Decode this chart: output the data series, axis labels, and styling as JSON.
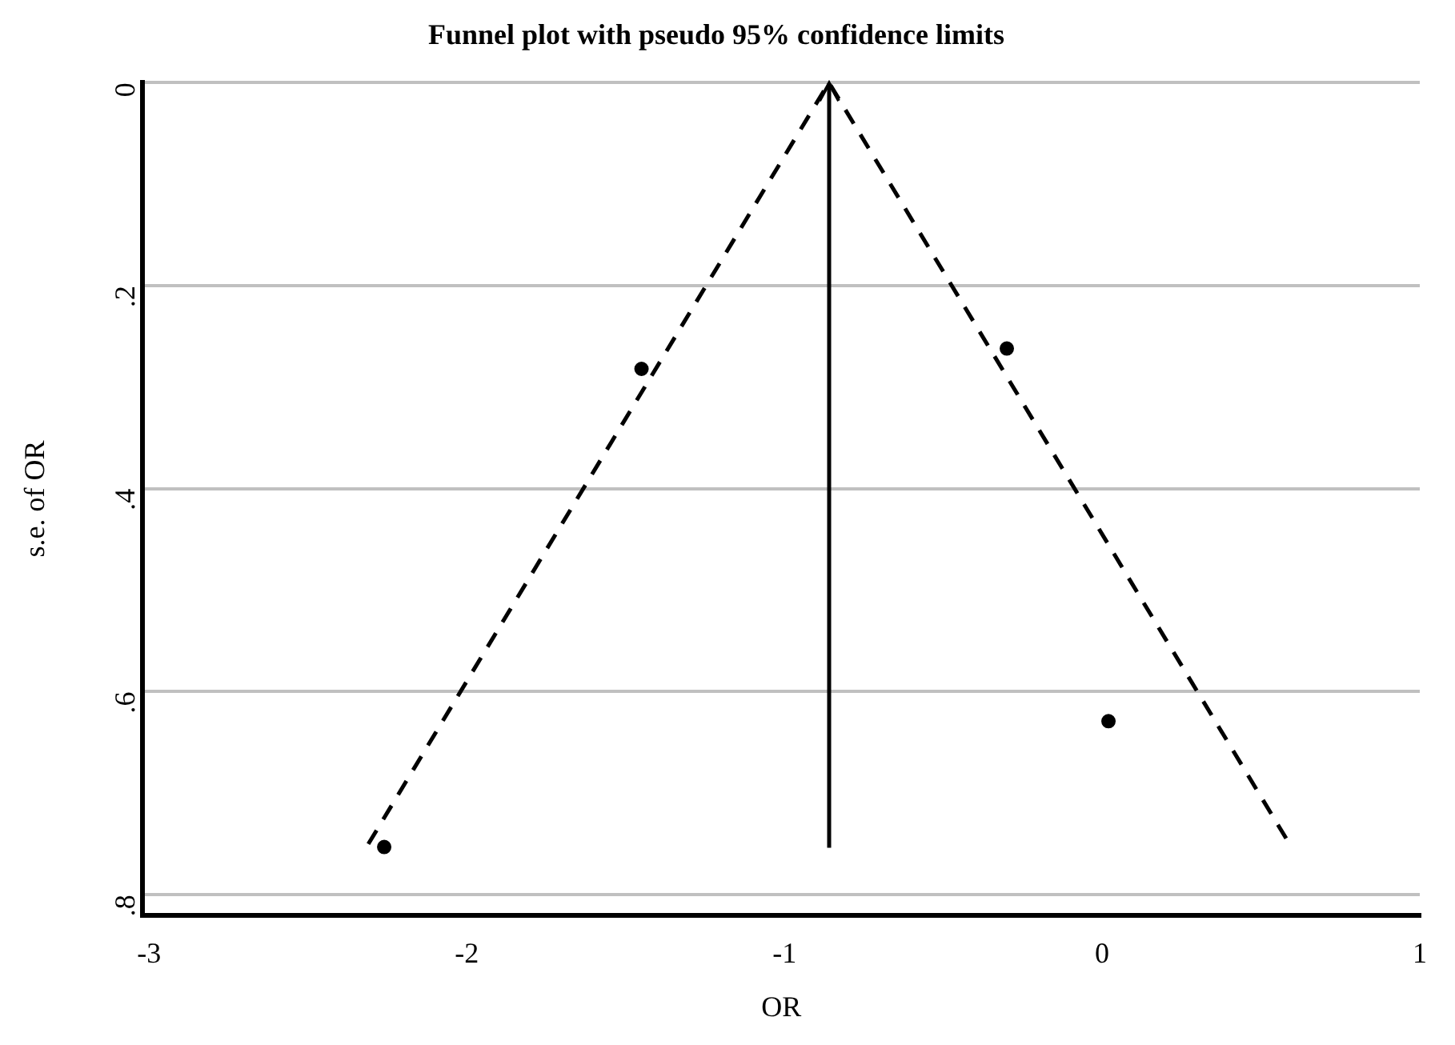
{
  "chart_data": {
    "type": "scatter",
    "title": "Funnel plot with pseudo 95% confidence limits",
    "xlabel": "OR",
    "ylabel": "s.e. of OR",
    "xlim": [
      -3.02,
      1
    ],
    "xticks": [
      -3,
      -2,
      -1,
      0,
      1
    ],
    "ylim": [
      0.82,
      0
    ],
    "yticks": [
      0,
      {
        "value": 0.2,
        "label": ".2"
      },
      {
        "value": 0.4,
        "label": ".4"
      },
      {
        "value": 0.6,
        "label": ".6"
      },
      {
        "value": 0.8,
        "label": ".8"
      }
    ],
    "grid": "y",
    "legend": false,
    "series": [
      {
        "color": "#000000",
        "marker": "circle",
        "x": [
          -2.26,
          -1.45,
          -0.3,
          0.02
        ],
        "values": [
          0.753,
          0.282,
          0.262,
          0.629
        ]
      },
      {
        "type": "line",
        "color": "#000000",
        "marker": "none",
        "line_style": "dashed",
        "x": [
          -2.31,
          -0.86,
          0.59
        ],
        "values": [
          0.75,
          0,
          0.75
        ]
      }
    ],
    "ref_lines": [
      {
        "axis": "x",
        "value": -0.86,
        "color": "#000000"
      }
    ]
  }
}
